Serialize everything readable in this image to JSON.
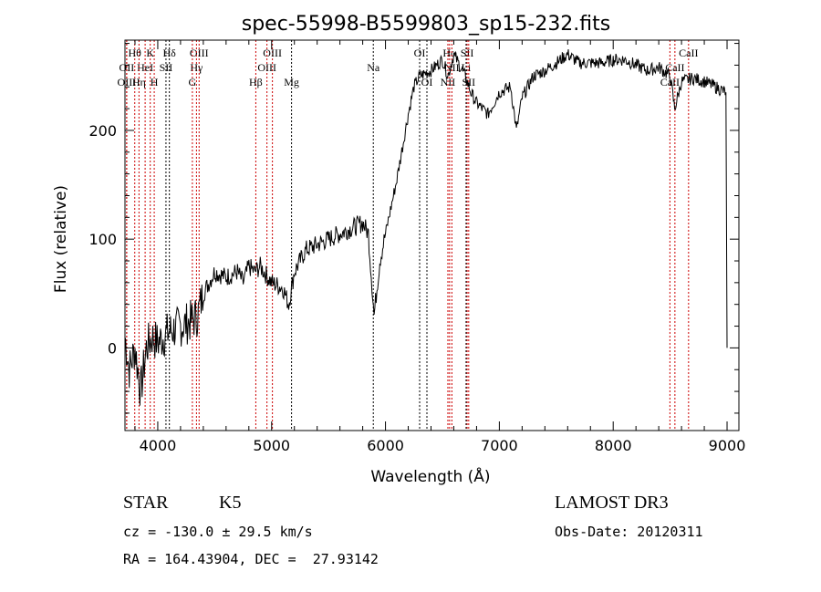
{
  "chart_data": {
    "type": "line",
    "title": "spec-55998-B5599803_sp15-232.fits",
    "xlabel": "Wavelength (Å)",
    "ylabel": "Flux (relative)",
    "xlim": [
      3712,
      9104
    ],
    "ylim": [
      -76,
      283
    ],
    "xticks": [
      4000,
      5000,
      6000,
      7000,
      8000,
      9000
    ],
    "yticks": [
      0,
      100,
      200
    ],
    "grid": false,
    "series": [
      {
        "name": "flux",
        "x": [
          3712,
          3750,
          3800,
          3850,
          3900,
          3950,
          4000,
          4100,
          4200,
          4300,
          4350,
          4400,
          4450,
          4500,
          4600,
          4700,
          4750,
          4800,
          4850,
          4900,
          5000,
          5100,
          5150,
          5200,
          5300,
          5400,
          5500,
          5600,
          5700,
          5800,
          5850,
          5900,
          5950,
          6000,
          6050,
          6100,
          6150,
          6200,
          6250,
          6300,
          6400,
          6500,
          6550,
          6600,
          6650,
          6700,
          6750,
          6800,
          6900,
          7000,
          7100,
          7150,
          7200,
          7300,
          7400,
          7500,
          7600,
          7700,
          7800,
          7900,
          8000,
          8100,
          8200,
          8300,
          8400,
          8500,
          8540,
          8600,
          8700,
          8800,
          8900,
          8990,
          9000
        ],
        "y": [
          10,
          -20,
          0,
          -40,
          0,
          10,
          5,
          15,
          20,
          25,
          30,
          50,
          60,
          70,
          65,
          70,
          60,
          75,
          70,
          75,
          60,
          55,
          40,
          70,
          90,
          95,
          100,
          105,
          110,
          115,
          105,
          30,
          80,
          105,
          130,
          155,
          185,
          215,
          240,
          250,
          255,
          265,
          250,
          270,
          260,
          250,
          235,
          225,
          215,
          235,
          240,
          200,
          230,
          250,
          255,
          262,
          270,
          262,
          262,
          262,
          265,
          265,
          260,
          255,
          258,
          250,
          220,
          245,
          248,
          245,
          240,
          235,
          0
        ]
      }
    ],
    "lines": [
      {
        "label": "Hθ",
        "wl": 3798,
        "row": 0,
        "color": "#cc0000"
      },
      {
        "label": "K",
        "wl": 3934,
        "row": 0,
        "color": "#cc0000"
      },
      {
        "label": "Hδ",
        "wl": 4102,
        "row": 0,
        "color": "#000000"
      },
      {
        "label": "OII",
        "wl": 3727,
        "row": 1,
        "color": "#cc0000"
      },
      {
        "label": "HeI",
        "wl": 3889,
        "row": 1,
        "color": "#cc0000"
      },
      {
        "label": "SII",
        "wl": 4072,
        "row": 1,
        "color": "#000000"
      },
      {
        "label": "OIII",
        "wl": 3727,
        "row": 2,
        "color": "#cc0000"
      },
      {
        "label": "Hη",
        "wl": 3835,
        "row": 2,
        "color": "#cc0000"
      },
      {
        "label": "H",
        "wl": 3969,
        "row": 2,
        "color": "#cc0000"
      },
      {
        "label": "OIII",
        "wl": 4363,
        "row": 0,
        "color": "#cc0000"
      },
      {
        "label": "Hγ",
        "wl": 4340,
        "row": 1,
        "color": "#cc0000"
      },
      {
        "label": "G",
        "wl": 4304,
        "row": 2,
        "color": "#cc0000"
      },
      {
        "label": "OIII",
        "wl": 5007,
        "row": 0,
        "color": "#cc0000"
      },
      {
        "label": "OIII",
        "wl": 4959,
        "row": 1,
        "color": "#cc0000"
      },
      {
        "label": "Hβ",
        "wl": 4861,
        "row": 2,
        "color": "#cc0000"
      },
      {
        "label": "Mg",
        "wl": 5175,
        "row": 2,
        "color": "#000000"
      },
      {
        "label": "Na",
        "wl": 5893,
        "row": 1,
        "color": "#000000"
      },
      {
        "label": "OI",
        "wl": 6300,
        "row": 0,
        "color": "#000000"
      },
      {
        "label": "OI",
        "wl": 6364,
        "row": 2,
        "color": "#000000"
      },
      {
        "label": "Hα",
        "wl": 6563,
        "row": 0,
        "color": "#cc0000"
      },
      {
        "label": "SII",
        "wl": 6717,
        "row": 0,
        "color": "#cc0000"
      },
      {
        "label": "NII",
        "wl": 6583,
        "row": 1,
        "color": "#cc0000"
      },
      {
        "label": "Li",
        "wl": 6708,
        "row": 1,
        "color": "#000000"
      },
      {
        "label": "NII",
        "wl": 6548,
        "row": 2,
        "color": "#cc0000"
      },
      {
        "label": "SII",
        "wl": 6731,
        "row": 2,
        "color": "#cc0000"
      },
      {
        "label": "CaII",
        "wl": 8662,
        "row": 0,
        "color": "#cc0000"
      },
      {
        "label": "CaII",
        "wl": 8542,
        "row": 1,
        "color": "#cc0000"
      },
      {
        "label": "CaII",
        "wl": 8498,
        "row": 2,
        "color": "#cc0000"
      }
    ]
  },
  "info": {
    "class": "STAR",
    "subclass": "K5",
    "survey": "LAMOST DR3",
    "cz": "cz = -130.0 ± 29.5 km/s",
    "obs_date": "Obs-Date: 20120311",
    "radec": "RA = 164.43904, DEC =  27.93142"
  }
}
